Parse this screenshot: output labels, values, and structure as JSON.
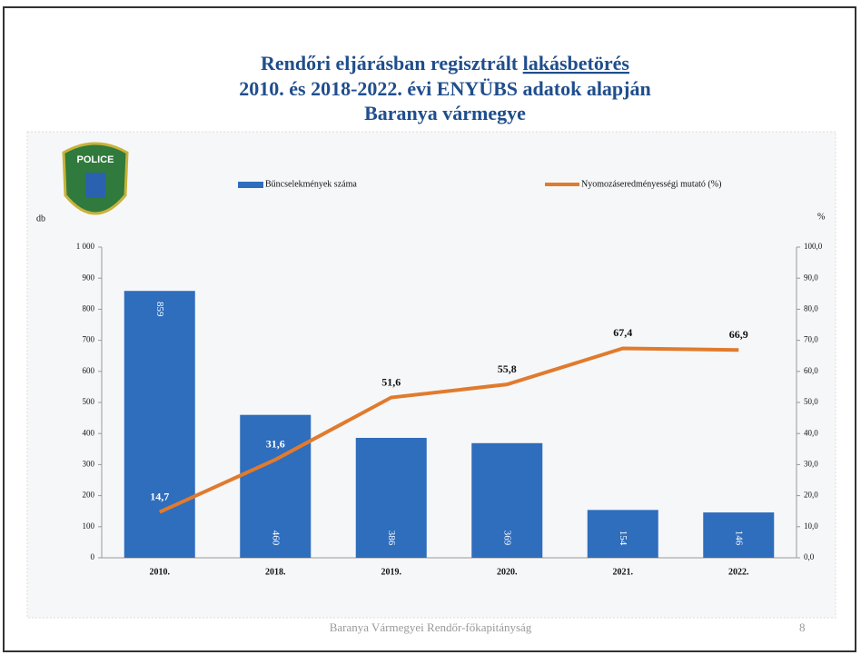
{
  "chart_data": {
    "type": "bar",
    "title": [
      "Rendőri eljárásban regisztrált",
      "lakásbetörés",
      "2010. és 2018-2022. évi ENYÜBS adatok alapján",
      "Baranya vármegye"
    ],
    "logo_text": "POLICE",
    "ylabel": "db",
    "y2label": "%",
    "categories": [
      "2010.",
      "2018.",
      "2019.",
      "2020.",
      "2021.",
      "2022."
    ],
    "series": [
      {
        "name": "Bűncselekmények száma",
        "type": "bar",
        "color": "#2f6dbd",
        "values": [
          859,
          460,
          386,
          369,
          154,
          146
        ]
      },
      {
        "name": "Nyomozáseredményességi mutató (%)",
        "type": "line",
        "axis": "y2",
        "color": "#e07b2e",
        "values": [
          14.7,
          31.6,
          51.6,
          55.8,
          67.4,
          66.9
        ],
        "value_labels": [
          "14,7",
          "31,6",
          "51,6",
          "55,8",
          "67,4",
          "66,9"
        ]
      }
    ],
    "ylim": [
      0,
      1000
    ],
    "yticks": [
      0,
      100,
      200,
      300,
      400,
      500,
      600,
      700,
      800,
      900,
      {
        "value": 1000,
        "label": "1 000"
      }
    ],
    "y2lim": [
      0,
      100
    ],
    "y2ticks": [
      {
        "value": 0,
        "label": "0,0"
      },
      {
        "value": 10,
        "label": "10,0"
      },
      {
        "value": 20,
        "label": "20,0"
      },
      {
        "value": 30,
        "label": "30,0"
      },
      {
        "value": 40,
        "label": "40,0"
      },
      {
        "value": 50,
        "label": "50,0"
      },
      {
        "value": 60,
        "label": "60,0"
      },
      {
        "value": 70,
        "label": "70,0"
      },
      {
        "value": 80,
        "label": "80,0"
      },
      {
        "value": 90,
        "label": "90,0"
      },
      {
        "value": 100,
        "label": "100,0"
      }
    ],
    "legend": "top",
    "footer": "Baranya Vármegyei Rendőr-főkapitányság",
    "page_number": "8"
  }
}
